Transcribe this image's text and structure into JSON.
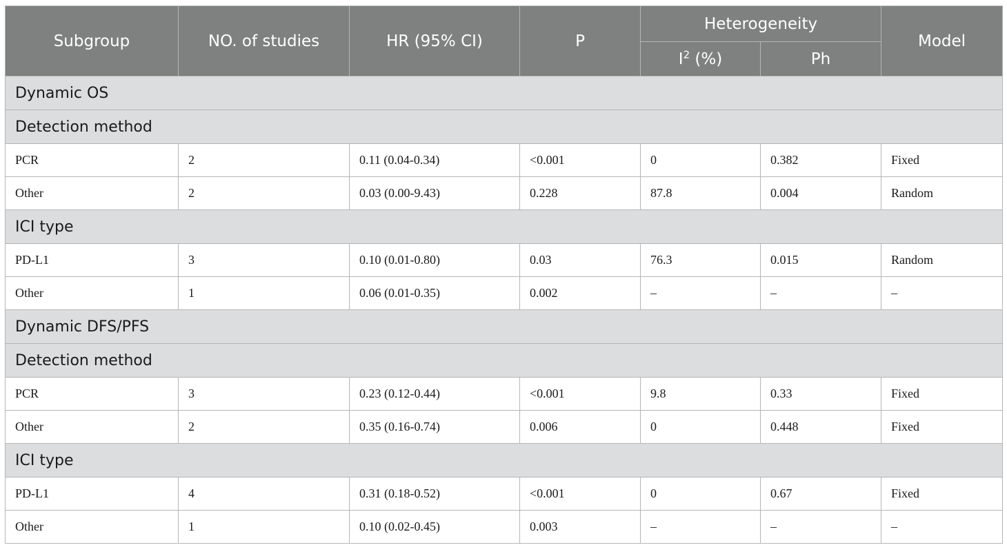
{
  "headers": {
    "subgroup": "Subgroup",
    "studies": "NO. of studies",
    "hr": "HR (95% CI)",
    "p": "P",
    "heterogeneity": "Heterogeneity",
    "i2_base": "I",
    "i2_sup": "2",
    "i2_rest": " (%)",
    "ph": "Ph",
    "model": "Model"
  },
  "rows": [
    {
      "type": "section",
      "label": "Dynamic OS"
    },
    {
      "type": "section",
      "label": "Detection method"
    },
    {
      "type": "data",
      "subgroup": "PCR",
      "studies": "2",
      "hr": "0.11 (0.04-0.34)",
      "p": "<0.001",
      "i2": "0",
      "ph": "0.382",
      "model": "Fixed"
    },
    {
      "type": "data",
      "subgroup": "Other",
      "studies": "2",
      "hr": "0.03 (0.00-9.43)",
      "p": "0.228",
      "i2": "87.8",
      "ph": "0.004",
      "model": "Random"
    },
    {
      "type": "section",
      "label": "ICI type"
    },
    {
      "type": "data",
      "subgroup": "PD-L1",
      "studies": "3",
      "hr": "0.10 (0.01-0.80)",
      "p": "0.03",
      "i2": "76.3",
      "ph": "0.015",
      "model": "Random"
    },
    {
      "type": "data",
      "subgroup": "Other",
      "studies": "1",
      "hr": "0.06 (0.01-0.35)",
      "p": "0.002",
      "i2": "–",
      "ph": "–",
      "model": "–"
    },
    {
      "type": "section",
      "label": "Dynamic DFS/PFS"
    },
    {
      "type": "section",
      "label": "Detection method"
    },
    {
      "type": "data",
      "subgroup": "PCR",
      "studies": "3",
      "hr": "0.23 (0.12-0.44)",
      "p": "<0.001",
      "i2": "9.8",
      "ph": "0.33",
      "model": "Fixed"
    },
    {
      "type": "data",
      "subgroup": "Other",
      "studies": "2",
      "hr": "0.35 (0.16-0.74)",
      "p": "0.006",
      "i2": "0",
      "ph": "0.448",
      "model": "Fixed"
    },
    {
      "type": "section",
      "label": "ICI type"
    },
    {
      "type": "data",
      "subgroup": "PD-L1",
      "studies": "4",
      "hr": "0.31 (0.18-0.52)",
      "p": "<0.001",
      "i2": "0",
      "ph": "0.67",
      "model": "Fixed"
    },
    {
      "type": "data",
      "subgroup": "Other",
      "studies": "1",
      "hr": "0.10 (0.02-0.45)",
      "p": "0.003",
      "i2": "–",
      "ph": "–",
      "model": "–"
    }
  ]
}
